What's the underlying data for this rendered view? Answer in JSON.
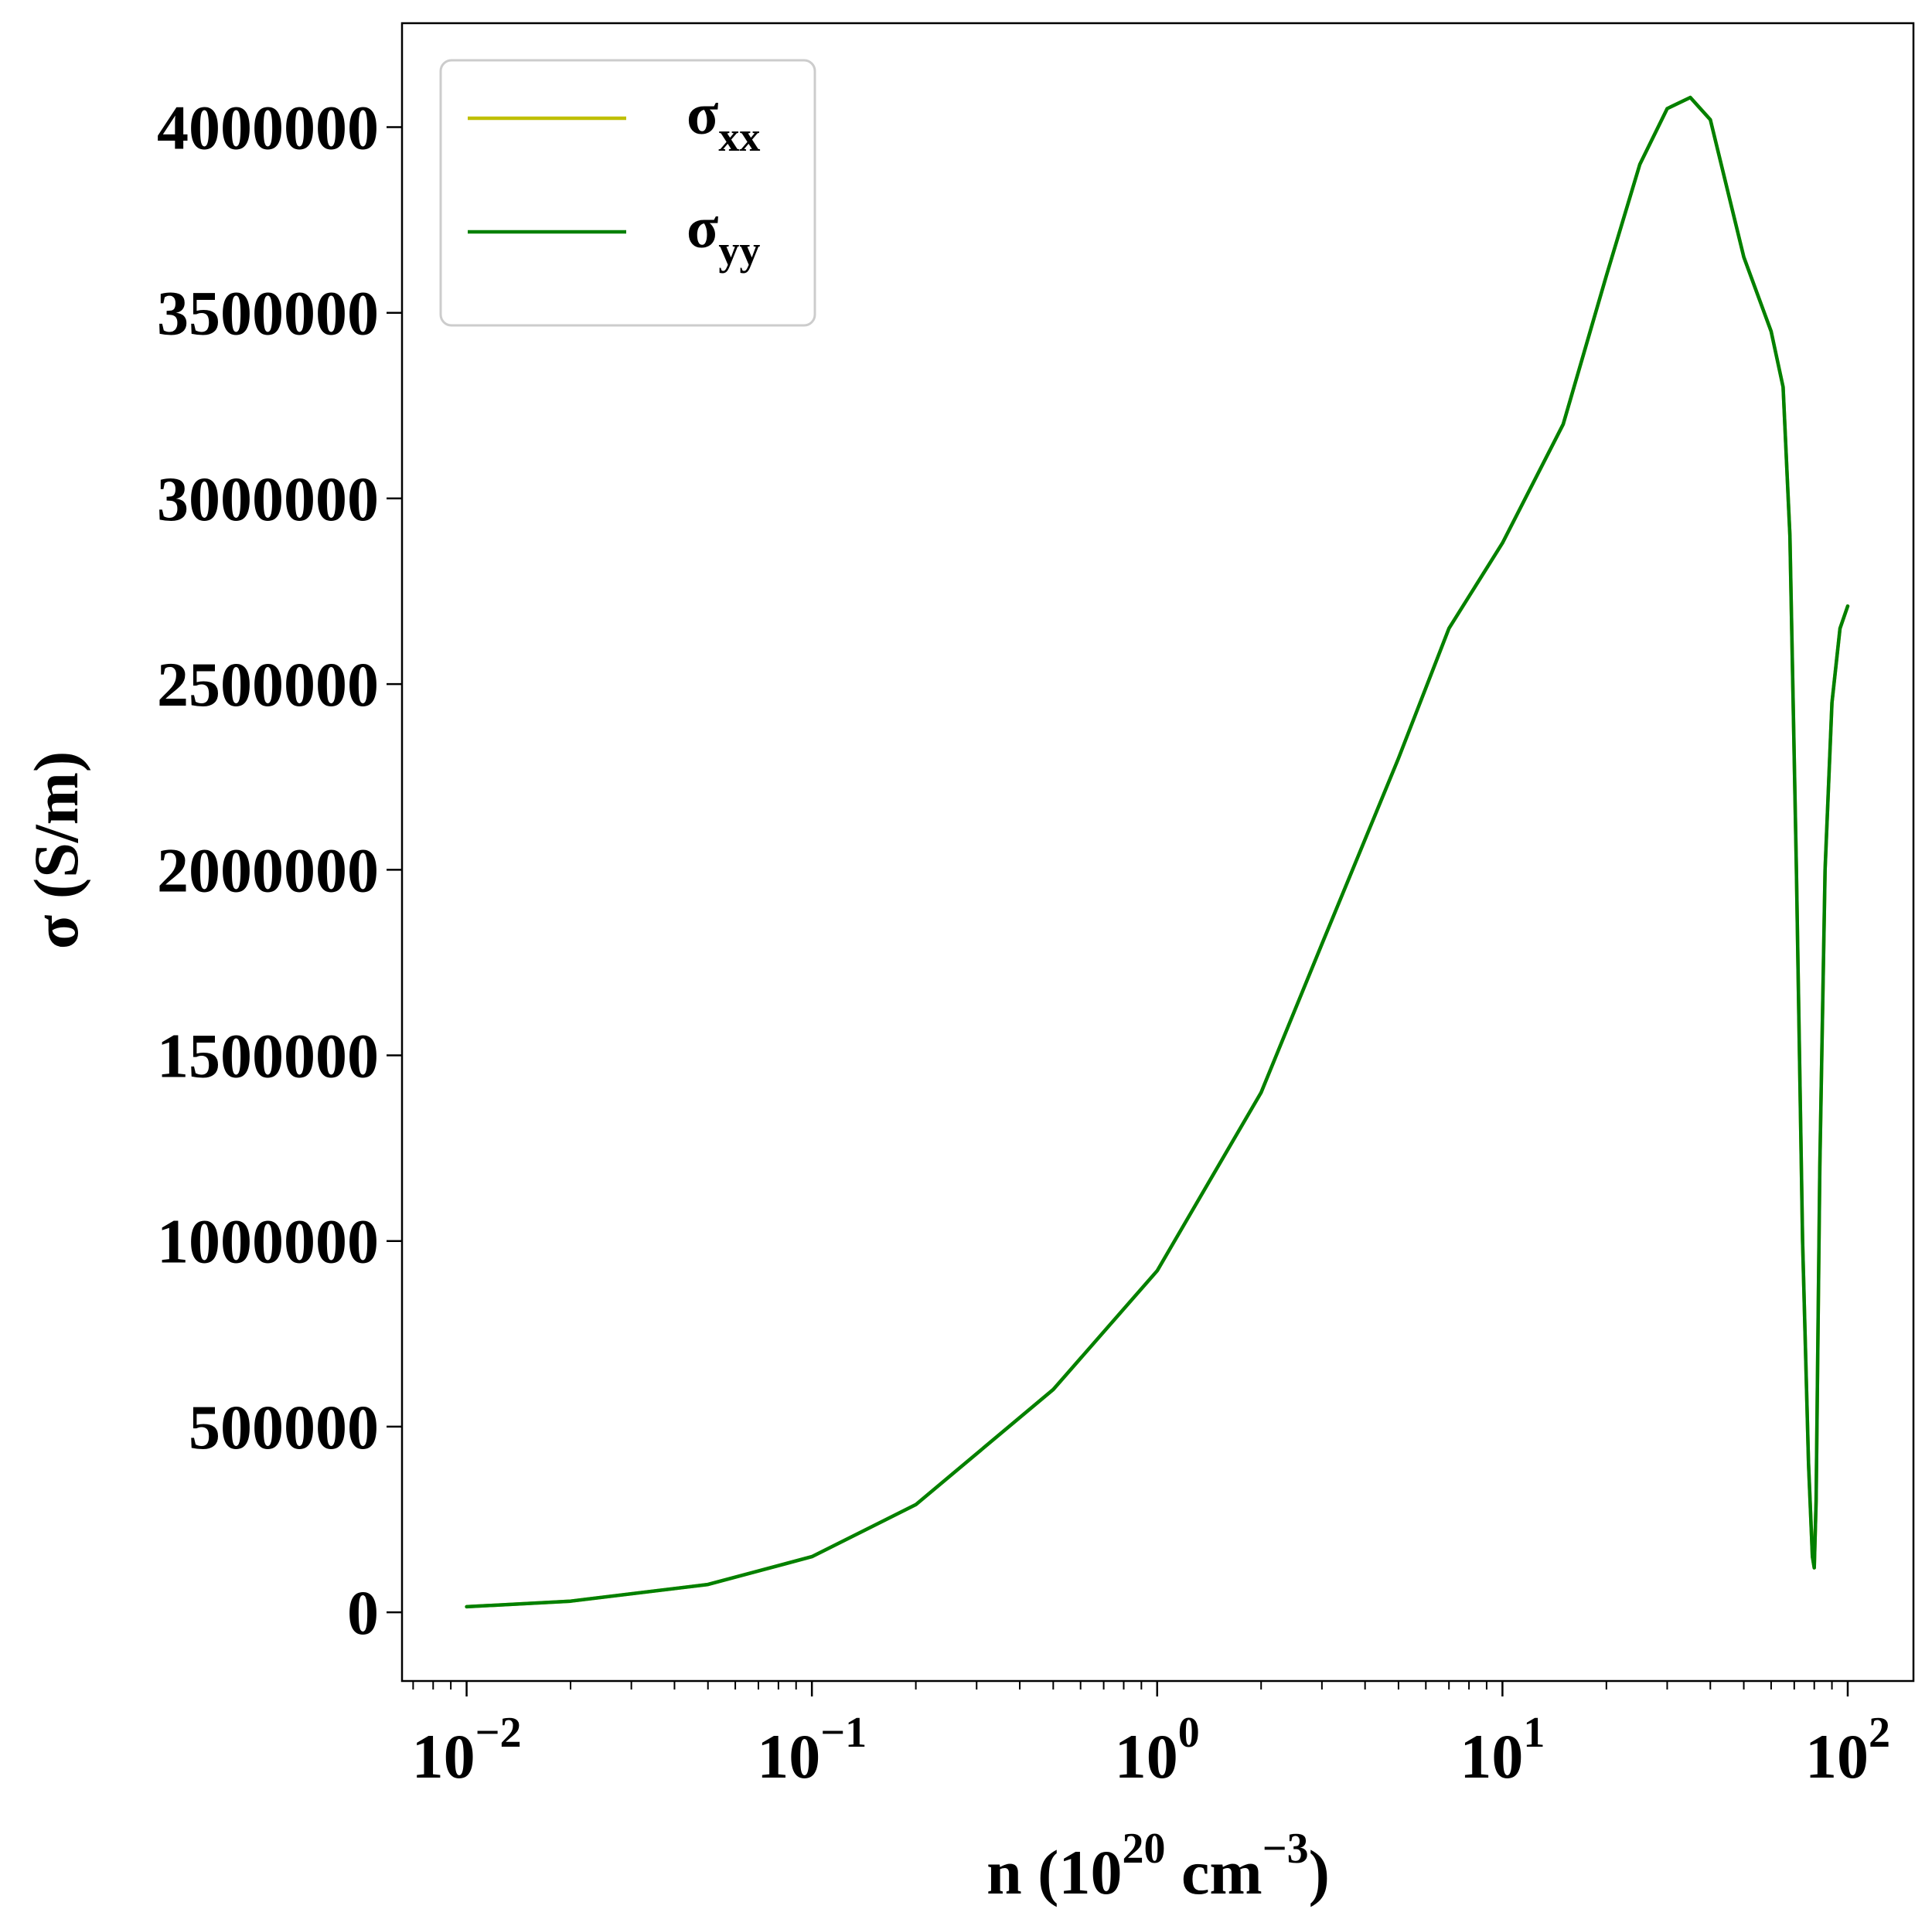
{
  "chart_data": {
    "type": "line",
    "xlabel": {
      "base": "n (10",
      "exp1": "20",
      "mid": " cm",
      "exp2": "−3",
      "end": ")"
    },
    "ylabel": "σ (S/m)",
    "x_scale": "log",
    "xlim": [
      0.0065,
      155
    ],
    "ylim": [
      -185000,
      4280000
    ],
    "grid": false,
    "legend_position": "top-left",
    "x_ticks": [
      {
        "value": 0.01,
        "base": "10",
        "exp": "−2"
      },
      {
        "value": 0.1,
        "base": "10",
        "exp": "−1"
      },
      {
        "value": 1,
        "base": "10",
        "exp": "0"
      },
      {
        "value": 10,
        "base": "10",
        "exp": "1"
      },
      {
        "value": 100,
        "base": "10",
        "exp": "2"
      }
    ],
    "y_ticks": [
      {
        "value": 0,
        "label": "0"
      },
      {
        "value": 500000,
        "label": "500000"
      },
      {
        "value": 1000000,
        "label": "1000000"
      },
      {
        "value": 1500000,
        "label": "1500000"
      },
      {
        "value": 2000000,
        "label": "2000000"
      },
      {
        "value": 2500000,
        "label": "2500000"
      },
      {
        "value": 3000000,
        "label": "3000000"
      },
      {
        "value": 3500000,
        "label": "3500000"
      },
      {
        "value": 4000000,
        "label": "4000000"
      }
    ],
    "series": [
      {
        "name": "σ",
        "sub": "xx",
        "color": "#bfbf00",
        "x": [
          0.01,
          0.02,
          0.05,
          0.1,
          0.2,
          0.5,
          1,
          2,
          3,
          5,
          7,
          10,
          15,
          20,
          25,
          30,
          35,
          40,
          50,
          60,
          65,
          68,
          71,
          74,
          77,
          79,
          80,
          81,
          83,
          86,
          90,
          95,
          100
        ],
        "y": [
          15000,
          30000,
          75000,
          150000,
          290000,
          600000,
          920000,
          1400000,
          1800000,
          2300000,
          2650000,
          2880000,
          3200000,
          3600000,
          3900000,
          4050000,
          4080000,
          4020000,
          3650000,
          3450000,
          3300000,
          2900000,
          2000000,
          1000000,
          400000,
          150000,
          120000,
          300000,
          1200000,
          2000000,
          2450000,
          2650000,
          2710000
        ]
      },
      {
        "name": "σ",
        "sub": "yy",
        "color": "#008000",
        "x": [
          0.01,
          0.02,
          0.05,
          0.1,
          0.2,
          0.5,
          1,
          2,
          3,
          5,
          7,
          10,
          15,
          20,
          25,
          30,
          35,
          40,
          50,
          60,
          65,
          68,
          71,
          74,
          77,
          79,
          80,
          81,
          83,
          86,
          90,
          95,
          100
        ],
        "y": [
          15000,
          30000,
          75000,
          150000,
          290000,
          600000,
          920000,
          1400000,
          1800000,
          2300000,
          2650000,
          2880000,
          3200000,
          3600000,
          3900000,
          4050000,
          4080000,
          4020000,
          3650000,
          3450000,
          3300000,
          2900000,
          2000000,
          1000000,
          400000,
          150000,
          120000,
          300000,
          1200000,
          2000000,
          2450000,
          2650000,
          2710000
        ]
      }
    ]
  }
}
